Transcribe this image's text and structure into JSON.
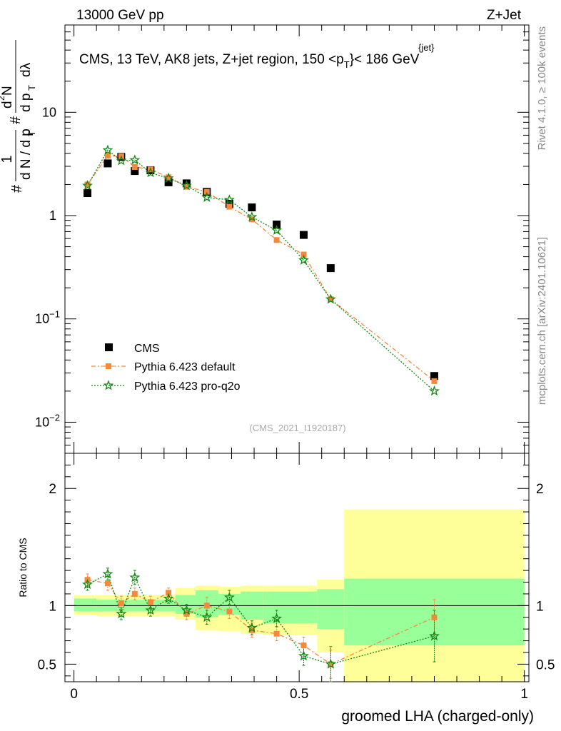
{
  "header": {
    "left": "13000 GeV pp",
    "right": "Z+Jet"
  },
  "side_labels": {
    "rivet": "Rivet 4.1.0, ≥ 100k events",
    "mcplots": "mcplots.cern.ch [arXiv:2401.10621]"
  },
  "colors": {
    "cms": "#000000",
    "default": "#f5883a",
    "proq2o": "#128612",
    "band_inner": "#99ff99",
    "band_outer": "#ffff99"
  },
  "chart_data": [
    {
      "type": "scatter",
      "scale": "log",
      "title": "CMS, 13 TeV, AK8 jets, Z+jet region, 150 < p_T^{jet} < 186 GeV",
      "title_parts": {
        "main": "CMS, 13 TeV, AK8 jets, Z+jet region, 150 <p",
        "sub": "T",
        "sup": "{jet}",
        "end": "}< 186 GeV"
      },
      "ylabel": "1/dN/dp_T # d^2N/dp_T dλ",
      "ylabel_parts": {
        "prefix": "#",
        "frac_num": "1",
        "frac_den": "d N / d p",
        "den_sub": "T",
        "mid": "#",
        "d2n_num": "d",
        "d2n_sup": "2",
        "d2n_n": "N",
        "d2n_den": "d p",
        "d2n_den_sub": "T",
        "d2n_lambda": "dλ"
      },
      "ylim": [
        0.005,
        70
      ],
      "y_ticks": [
        {
          "value": 0.01,
          "label": "10",
          "exp": "−2"
        },
        {
          "value": 0.1,
          "label": "10",
          "exp": "−1"
        },
        {
          "value": 1,
          "label": "1",
          "exp": ""
        },
        {
          "value": 10,
          "label": "10",
          "exp": ""
        }
      ],
      "watermark": "(CMS_2021_I1920187)",
      "legend": [
        "CMS",
        "Pythia 6.423 default",
        "Pythia 6.423 pro-q2o"
      ],
      "series": [
        {
          "name": "CMS",
          "x": [
            0.03,
            0.075,
            0.105,
            0.135,
            0.17,
            0.21,
            0.25,
            0.295,
            0.345,
            0.395,
            0.45,
            0.51,
            0.57,
            0.8
          ],
          "values": [
            1.65,
            3.2,
            3.7,
            2.7,
            2.75,
            2.1,
            2.05,
            1.7,
            1.3,
            1.2,
            0.82,
            0.65,
            0.31,
            0.028
          ]
        },
        {
          "name": "Pythia 6.423 default",
          "x": [
            0.03,
            0.075,
            0.105,
            0.135,
            0.17,
            0.21,
            0.25,
            0.295,
            0.345,
            0.395,
            0.45,
            0.51,
            0.57,
            0.8
          ],
          "values": [
            2.0,
            3.8,
            3.75,
            2.95,
            2.8,
            2.35,
            1.9,
            1.7,
            1.22,
            0.92,
            0.58,
            0.42,
            0.155,
            0.025
          ]
        },
        {
          "name": "Pythia 6.423 pro-q2o",
          "x": [
            0.03,
            0.075,
            0.105,
            0.135,
            0.17,
            0.21,
            0.25,
            0.295,
            0.345,
            0.395,
            0.45,
            0.51,
            0.57,
            0.8
          ],
          "values": [
            1.95,
            4.3,
            3.4,
            3.45,
            2.6,
            2.3,
            1.95,
            1.5,
            1.42,
            0.97,
            0.72,
            0.37,
            0.155,
            0.02
          ]
        }
      ]
    },
    {
      "type": "scatter",
      "title": "Ratio to CMS",
      "xlabel": "groomed LHA (charged-only)",
      "ylabel": "Ratio to CMS",
      "xlim": [
        -0.02,
        1.01
      ],
      "ylim": [
        0.35,
        2.3
      ],
      "x_ticks": [
        {
          "value": 0,
          "label": "0"
        },
        {
          "value": 0.5,
          "label": "0.5"
        },
        {
          "value": 1,
          "label": "1"
        }
      ],
      "y_ticks": [
        {
          "value": 0.5,
          "label": "0.5"
        },
        {
          "value": 1,
          "label": "1"
        },
        {
          "value": 2,
          "label": "2"
        }
      ],
      "reference_line": 1,
      "bands": [
        {
          "x0": 0.0,
          "x1": 0.05,
          "inner": [
            0.95,
            1.06
          ],
          "outer": [
            0.92,
            1.09
          ]
        },
        {
          "x0": 0.05,
          "x1": 0.225,
          "inner": [
            0.95,
            1.05
          ],
          "outer": [
            0.91,
            1.09
          ]
        },
        {
          "x0": 0.225,
          "x1": 0.27,
          "inner": [
            0.93,
            1.09
          ],
          "outer": [
            0.88,
            1.15
          ]
        },
        {
          "x0": 0.27,
          "x1": 0.32,
          "inner": [
            0.9,
            1.13
          ],
          "outer": [
            0.79,
            1.17
          ]
        },
        {
          "x0": 0.32,
          "x1": 0.37,
          "inner": [
            0.92,
            1.1
          ],
          "outer": [
            0.78,
            1.16
          ]
        },
        {
          "x0": 0.37,
          "x1": 0.42,
          "inner": [
            0.88,
            1.12
          ],
          "outer": [
            0.76,
            1.17
          ]
        },
        {
          "x0": 0.42,
          "x1": 0.54,
          "inner": [
            0.85,
            1.12
          ],
          "outer": [
            0.75,
            1.17
          ]
        },
        {
          "x0": 0.54,
          "x1": 0.6,
          "inner": [
            0.8,
            1.14
          ],
          "outer": [
            0.6,
            1.22
          ]
        },
        {
          "x0": 0.6,
          "x1": 1.0,
          "inner": [
            0.66,
            1.23
          ],
          "outer": [
            0.35,
            1.82
          ]
        }
      ],
      "series": [
        {
          "name": "Pythia 6.423 default",
          "x": [
            0.03,
            0.075,
            0.105,
            0.135,
            0.17,
            0.21,
            0.25,
            0.295,
            0.345,
            0.395,
            0.45,
            0.51,
            0.57,
            0.8
          ],
          "values": [
            1.22,
            1.19,
            1.02,
            1.1,
            1.03,
            1.11,
            0.93,
            1.0,
            0.95,
            0.79,
            0.76,
            0.66,
            0.5,
            0.9
          ],
          "errors": [
            0.05,
            0.06,
            0.06,
            0.05,
            0.05,
            0.04,
            0.05,
            0.07,
            0.06,
            0.06,
            0.06,
            0.07,
            0.12,
            0.15
          ]
        },
        {
          "name": "Pythia 6.423 pro-q2o",
          "x": [
            0.03,
            0.075,
            0.105,
            0.135,
            0.17,
            0.21,
            0.25,
            0.295,
            0.345,
            0.395,
            0.45,
            0.51,
            0.57,
            0.8
          ],
          "values": [
            1.18,
            1.27,
            0.93,
            1.24,
            0.96,
            1.06,
            0.96,
            0.9,
            1.07,
            0.81,
            0.89,
            0.57,
            0.5,
            0.74
          ],
          "errors": [
            0.05,
            0.05,
            0.05,
            0.06,
            0.05,
            0.04,
            0.05,
            0.06,
            0.06,
            0.06,
            0.07,
            0.08,
            0.15,
            0.22
          ]
        }
      ]
    }
  ]
}
